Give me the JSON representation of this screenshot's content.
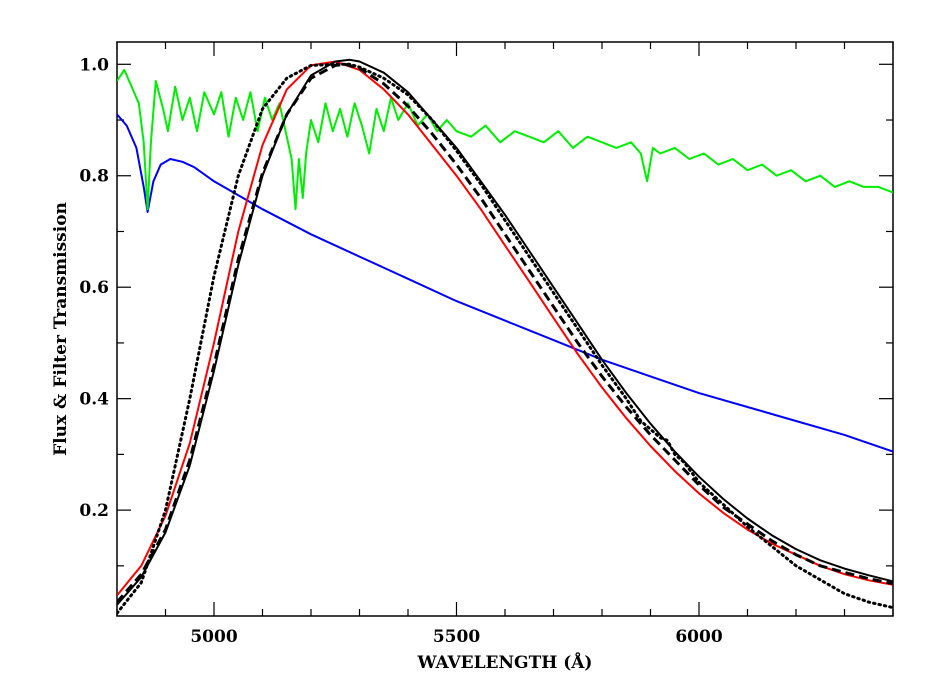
{
  "chart_data": {
    "type": "line",
    "xlabel": "WAVELENGTH (Å)",
    "ylabel": "Flux & Filter Transmission",
    "xlim": [
      4800,
      6400
    ],
    "ylim": [
      0.01,
      1.04
    ],
    "x_ticks": [
      5000,
      5500,
      6000
    ],
    "y_ticks": [
      0.2,
      0.4,
      0.6,
      0.8,
      1.0
    ],
    "x_tick_labels": [
      "5000",
      "5500",
      "6000"
    ],
    "y_tick_labels": [
      "0.2",
      "0.4",
      "0.6",
      "0.8",
      "1.0"
    ],
    "grid": false,
    "legend": "none",
    "series": [
      {
        "name": "blue-spectrum",
        "color": "#0000ff",
        "style": "solid",
        "x": [
          4800,
          4820,
          4840,
          4855,
          4863,
          4875,
          4890,
          4910,
          4935,
          4960,
          5000,
          5050,
          5100,
          5200,
          5300,
          5400,
          5500,
          5600,
          5700,
          5800,
          5900,
          6000,
          6100,
          6200,
          6300,
          6400
        ],
        "y": [
          0.91,
          0.89,
          0.85,
          0.78,
          0.735,
          0.79,
          0.82,
          0.83,
          0.825,
          0.815,
          0.79,
          0.765,
          0.74,
          0.695,
          0.655,
          0.615,
          0.575,
          0.54,
          0.505,
          0.47,
          0.44,
          0.41,
          0.385,
          0.36,
          0.335,
          0.305
        ]
      },
      {
        "name": "green-spectrum",
        "color": "#00ee00",
        "style": "solid",
        "x": [
          4800,
          4815,
          4830,
          4845,
          4855,
          4863,
          4870,
          4880,
          4895,
          4905,
          4920,
          4935,
          4950,
          4965,
          4980,
          5000,
          5015,
          5030,
          5045,
          5060,
          5075,
          5090,
          5105,
          5120,
          5135,
          5150,
          5160,
          5168,
          5175,
          5183,
          5190,
          5200,
          5215,
          5230,
          5245,
          5260,
          5275,
          5290,
          5305,
          5320,
          5335,
          5350,
          5365,
          5380,
          5400,
          5420,
          5440,
          5460,
          5480,
          5500,
          5530,
          5560,
          5590,
          5620,
          5650,
          5680,
          5710,
          5740,
          5770,
          5800,
          5830,
          5860,
          5880,
          5893,
          5905,
          5920,
          5950,
          5980,
          6010,
          6040,
          6070,
          6100,
          6130,
          6160,
          6190,
          6220,
          6250,
          6280,
          6310,
          6340,
          6370,
          6400
        ],
        "y": [
          0.97,
          0.99,
          0.96,
          0.93,
          0.86,
          0.74,
          0.86,
          0.97,
          0.92,
          0.88,
          0.96,
          0.9,
          0.94,
          0.88,
          0.95,
          0.91,
          0.95,
          0.87,
          0.94,
          0.9,
          0.95,
          0.88,
          0.94,
          0.9,
          0.93,
          0.87,
          0.83,
          0.74,
          0.83,
          0.76,
          0.84,
          0.9,
          0.86,
          0.93,
          0.88,
          0.92,
          0.87,
          0.93,
          0.89,
          0.84,
          0.92,
          0.88,
          0.94,
          0.9,
          0.93,
          0.89,
          0.91,
          0.88,
          0.9,
          0.88,
          0.87,
          0.89,
          0.86,
          0.88,
          0.87,
          0.86,
          0.88,
          0.85,
          0.87,
          0.86,
          0.85,
          0.86,
          0.84,
          0.79,
          0.85,
          0.84,
          0.85,
          0.83,
          0.84,
          0.82,
          0.83,
          0.81,
          0.82,
          0.8,
          0.81,
          0.79,
          0.8,
          0.78,
          0.79,
          0.78,
          0.78,
          0.77
        ]
      },
      {
        "name": "red-filter",
        "color": "#ff0000",
        "style": "solid",
        "x": [
          4800,
          4850,
          4900,
          4950,
          5000,
          5050,
          5100,
          5150,
          5200,
          5250,
          5300,
          5350,
          5400,
          5450,
          5500,
          5550,
          5600,
          5650,
          5700,
          5750,
          5800,
          5850,
          5900,
          5950,
          6000,
          6050,
          6100,
          6150,
          6200,
          6250,
          6300,
          6350,
          6400
        ],
        "y": [
          0.047,
          0.1,
          0.19,
          0.32,
          0.5,
          0.7,
          0.855,
          0.955,
          0.998,
          1.005,
          0.99,
          0.955,
          0.91,
          0.855,
          0.8,
          0.74,
          0.675,
          0.61,
          0.545,
          0.48,
          0.42,
          0.365,
          0.315,
          0.27,
          0.23,
          0.195,
          0.165,
          0.14,
          0.12,
          0.1,
          0.085,
          0.074,
          0.066
        ]
      },
      {
        "name": "black-solid-filter",
        "color": "#000000",
        "style": "solid",
        "x": [
          4800,
          4850,
          4900,
          4950,
          5000,
          5050,
          5100,
          5150,
          5200,
          5250,
          5280,
          5300,
          5350,
          5400,
          5450,
          5500,
          5550,
          5600,
          5650,
          5700,
          5750,
          5800,
          5850,
          5900,
          5950,
          6000,
          6050,
          6100,
          6150,
          6200,
          6250,
          6300,
          6350,
          6400
        ],
        "y": [
          0.03,
          0.08,
          0.16,
          0.28,
          0.45,
          0.64,
          0.8,
          0.91,
          0.98,
          1.005,
          1.008,
          1.005,
          0.985,
          0.95,
          0.9,
          0.85,
          0.79,
          0.73,
          0.665,
          0.6,
          0.535,
          0.47,
          0.41,
          0.355,
          0.305,
          0.26,
          0.22,
          0.185,
          0.155,
          0.13,
          0.11,
          0.095,
          0.083,
          0.072
        ]
      },
      {
        "name": "black-dashed-filter",
        "color": "#000000",
        "style": "dashed",
        "x": [
          4800,
          4850,
          4900,
          4950,
          5000,
          5050,
          5100,
          5150,
          5200,
          5250,
          5270,
          5300,
          5350,
          5400,
          5450,
          5500,
          5550,
          5600,
          5650,
          5700,
          5750,
          5800,
          5850,
          5900,
          5950,
          6000,
          6050,
          6100,
          6150,
          6200,
          6250,
          6300,
          6350,
          6400
        ],
        "y": [
          0.035,
          0.085,
          0.165,
          0.29,
          0.46,
          0.65,
          0.805,
          0.91,
          0.975,
          0.998,
          1.0,
          0.993,
          0.965,
          0.925,
          0.875,
          0.82,
          0.76,
          0.695,
          0.63,
          0.565,
          0.5,
          0.44,
          0.385,
          0.335,
          0.29,
          0.245,
          0.205,
          0.175,
          0.145,
          0.12,
          0.1,
          0.088,
          0.077,
          0.068
        ]
      },
      {
        "name": "black-dotted-filter",
        "color": "#000000",
        "style": "dotted",
        "x": [
          4800,
          4850,
          4900,
          4950,
          5000,
          5050,
          5100,
          5150,
          5200,
          5250,
          5280,
          5300,
          5350,
          5400,
          5450,
          5500,
          5550,
          5600,
          5650,
          5700,
          5750,
          5800,
          5850,
          5880,
          5900,
          5920,
          5935,
          5950,
          5970,
          6000,
          6050,
          6100,
          6150,
          6200,
          6250,
          6300,
          6350,
          6400
        ],
        "y": [
          0.015,
          0.07,
          0.2,
          0.4,
          0.62,
          0.8,
          0.92,
          0.975,
          0.998,
          1.0,
          1.0,
          0.995,
          0.975,
          0.945,
          0.9,
          0.845,
          0.785,
          0.72,
          0.655,
          0.59,
          0.525,
          0.46,
          0.4,
          0.36,
          0.345,
          0.33,
          0.325,
          0.3,
          0.285,
          0.25,
          0.21,
          0.17,
          0.135,
          0.1,
          0.075,
          0.05,
          0.035,
          0.025
        ]
      }
    ]
  }
}
